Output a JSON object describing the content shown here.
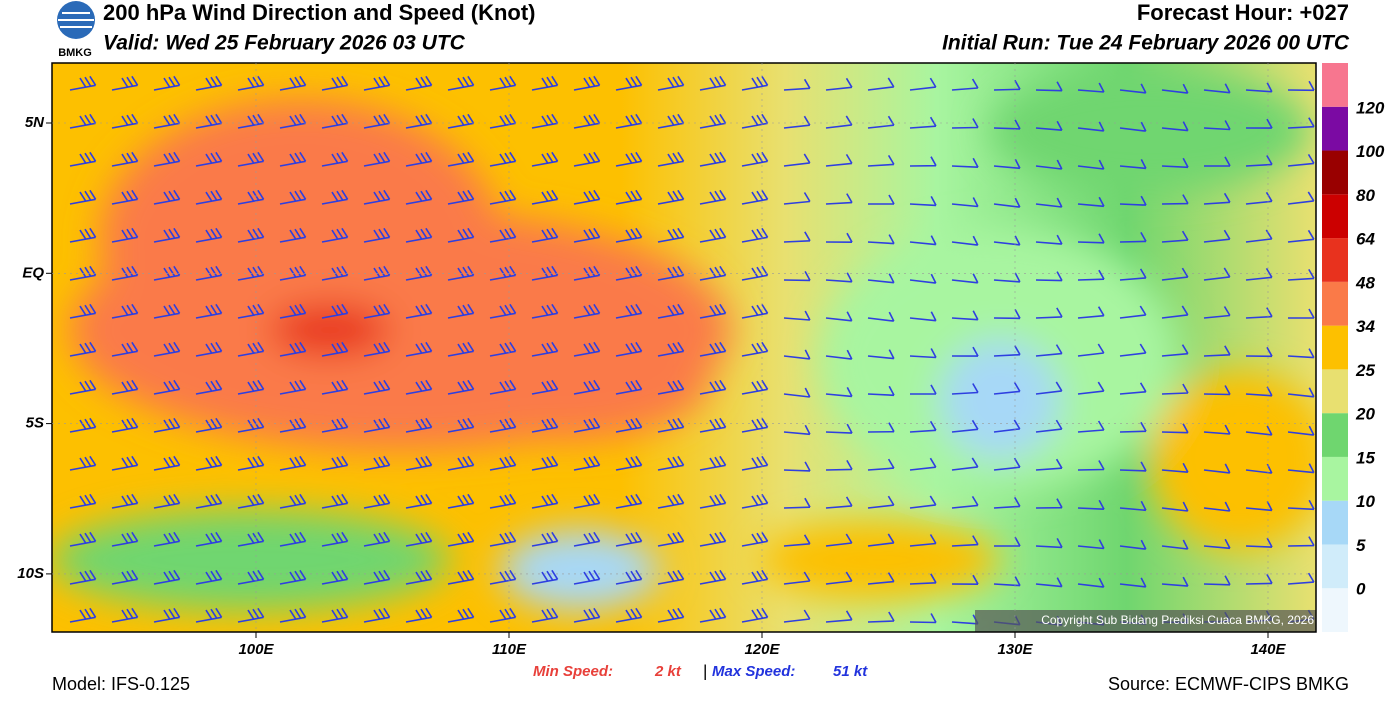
{
  "header": {
    "logo": "BMKG",
    "title": "200 hPa Wind Direction and Speed (Knot)",
    "valid": "Valid: Wed 25 February 2026 03 UTC",
    "forecast": "Forecast Hour: +027",
    "initial": "Initial Run: Tue 24 February 2026 00 UTC"
  },
  "map": {
    "lat_labels": [
      "5N",
      "EQ",
      "5S",
      "10S"
    ],
    "lon_labels": [
      "100E",
      "110E",
      "120E",
      "130E",
      "140E"
    ],
    "copyright": "Copyright Sub Bidang Prediksi Cuaca BMKG, 2026"
  },
  "colorbar": {
    "labels": [
      0,
      5,
      10,
      15,
      20,
      25,
      34,
      48,
      64,
      80,
      100,
      120
    ],
    "colors": [
      "#eef7fd",
      "#d0ecfa",
      "#a7d8f7",
      "#a8f5a0",
      "#6fd66f",
      "#e8e070",
      "#fdc000",
      "#fa7a48",
      "#e8321e",
      "#cc0000",
      "#990000",
      "#7b0aa3",
      "#f7768f"
    ]
  },
  "footer": {
    "model": "Model: IFS-0.125",
    "min_label": "Min Speed:",
    "min_value": "2 kt",
    "separator": "|",
    "max_label": "Max Speed:",
    "max_value": "51 kt",
    "source": "Source: ECMWF-CIPS BMKG"
  }
}
